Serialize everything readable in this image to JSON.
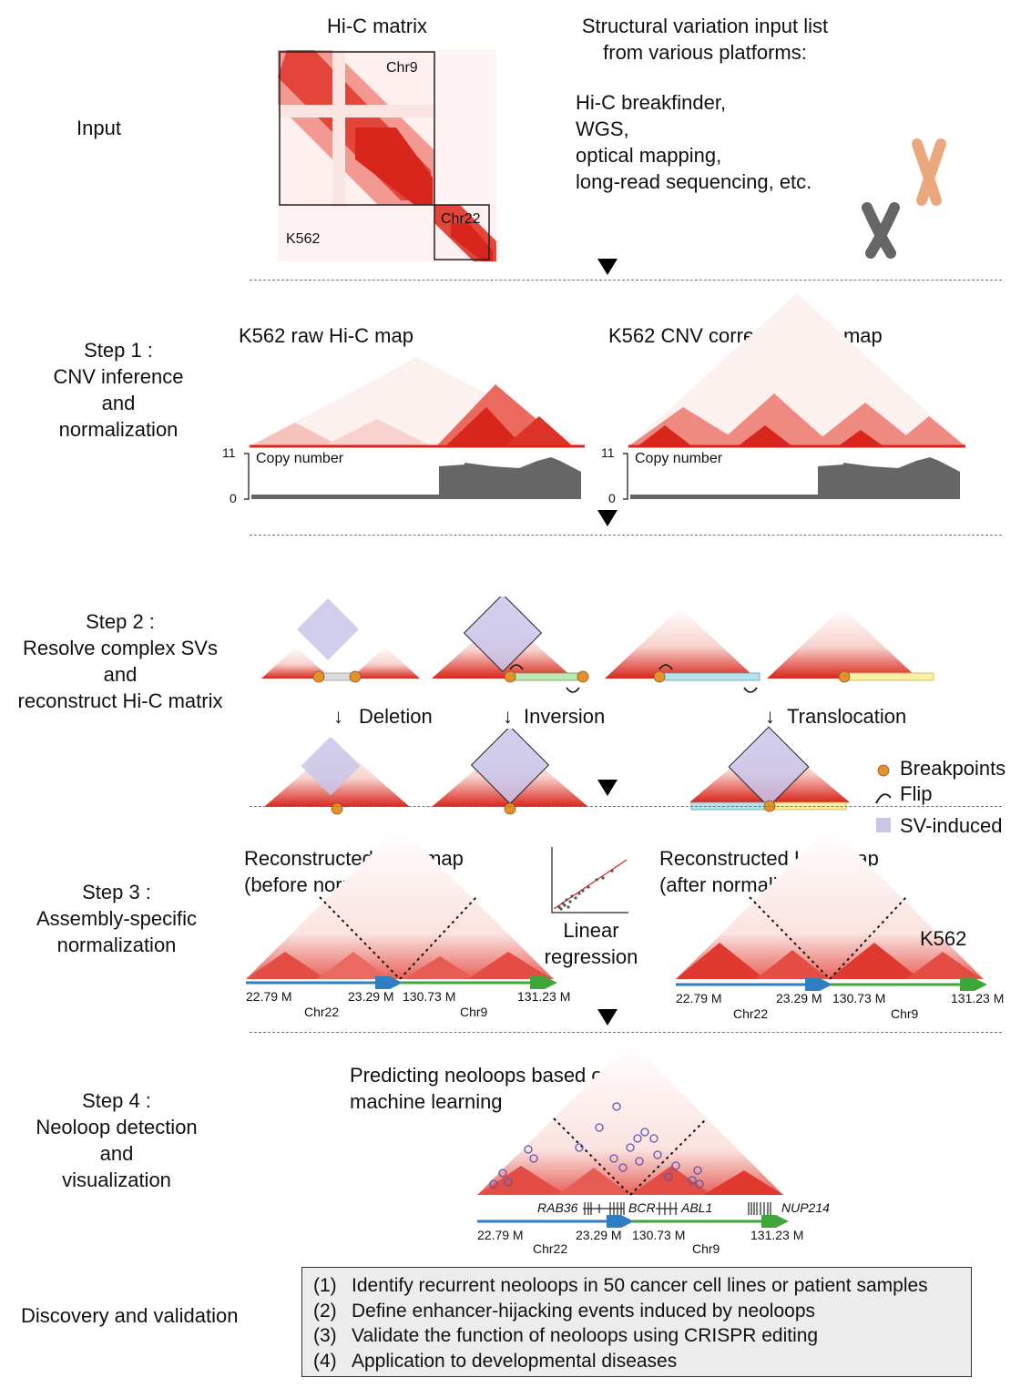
{
  "left_labels": {
    "input": "Input",
    "step1": [
      "Step 1 :",
      "CNV inference",
      "and",
      "normalization"
    ],
    "step2": [
      "Step 2 :",
      "Resolve complex SVs",
      "and",
      "reconstruct Hi-C matrix"
    ],
    "step3": [
      "Step 3 :",
      "Assembly-specific",
      "normalization"
    ],
    "step4": [
      "Step 4 :",
      "Neoloop detection",
      "and",
      "visualization"
    ],
    "discovery": "Discovery and validation"
  },
  "input": {
    "matrix_title": "Hi-C matrix",
    "chr9": "Chr9",
    "chr22": "Chr22",
    "cell": "K562",
    "sv_title": [
      "Structural variation input list",
      "from various platforms:"
    ],
    "sv_sources": [
      "Hi-C breakfinder,",
      "WGS,",
      "optical mapping,",
      "long-read sequencing, etc."
    ]
  },
  "step1": {
    "raw_title": "K562 raw Hi-C map",
    "corrected_title": "K562 CNV corrected Hi-C map",
    "copy_label": "Copy number",
    "y_max": "11",
    "y_min": "0"
  },
  "step2": {
    "deletion": "Deletion",
    "inversion": "Inversion",
    "translocation": "Translocation",
    "arrow": "↓",
    "legend": {
      "breakpoints": "Breakpoints",
      "flip": "Flip",
      "sv_induced": "SV-induced"
    }
  },
  "step3": {
    "before_title": [
      "Reconstructed Hi-C map",
      "(before normalization)"
    ],
    "after_title": [
      "Reconstructed Hi-C map",
      "(after normalization)"
    ],
    "regression": [
      "Linear",
      "regression"
    ],
    "cell": "K562",
    "coords": [
      "22.79 M",
      "23.29 M",
      "130.73 M",
      "131.23 M"
    ],
    "chr22": "Chr22",
    "chr9": "Chr9"
  },
  "step4": {
    "title": [
      "Predicting neoloops based on",
      "machine learning"
    ],
    "genes": [
      "RAB36",
      "BCR",
      "ABL1",
      "NUP214"
    ],
    "coords": [
      "22.79 M",
      "23.29 M",
      "130.73 M",
      "131.23 M"
    ],
    "chr22": "Chr22",
    "chr9": "Chr9"
  },
  "discovery_items": [
    {
      "num": "(1)",
      "text": "Identify recurrent neoloops in 50 cancer cell lines or patient samples"
    },
    {
      "num": "(2)",
      "text": "Define enhancer-hijacking events induced by neoloops"
    },
    {
      "num": "(3)",
      "text": "Validate the function of neoloops using CRISPR editing"
    },
    {
      "num": "(4)",
      "text": "Application to developmental diseases"
    }
  ],
  "colors": {
    "heat_red": "#d9261c",
    "heat_light": "#f7c6c0",
    "sv_induced": "#c9c6ea",
    "breakpoint": "#e3912c",
    "blue_arrow": "#2f7ec1",
    "green_arrow": "#3fa63a",
    "copy_bar": "#666666"
  }
}
